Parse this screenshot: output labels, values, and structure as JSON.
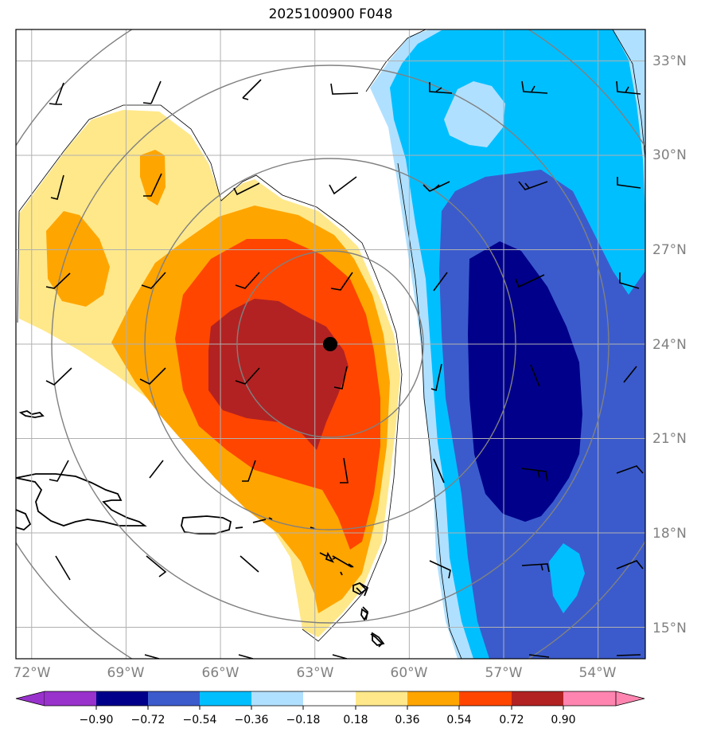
{
  "title": "2025100900 F048",
  "map": {
    "lon_range": [
      -72.5,
      -52.5
    ],
    "lat_range": [
      14,
      34
    ],
    "lon_ticks": [
      "72°W",
      "69°W",
      "66°W",
      "63°W",
      "60°W",
      "57°W",
      "54°W"
    ],
    "lat_ticks": [
      "33°N",
      "30°N",
      "27°N",
      "24°N",
      "21°N",
      "18°N",
      "15°N"
    ],
    "storm_center": {
      "lon": -62.5,
      "lat": 24.0
    },
    "range_rings": 4,
    "grid": true
  },
  "colorbar": {
    "levels": [
      "−0.90",
      "−0.72",
      "−0.54",
      "−0.36",
      "−0.18",
      "0.18",
      "0.36",
      "0.54",
      "0.72",
      "0.90"
    ],
    "colors": [
      "#9932cc",
      "#00008b",
      "#3b5bcc",
      "#00bfff",
      "#b0e0ff",
      "#ffffff",
      "#ffe88a",
      "#ffa500",
      "#ff4500",
      "#b22222",
      "#ff85b0"
    ],
    "extend": "both"
  }
}
